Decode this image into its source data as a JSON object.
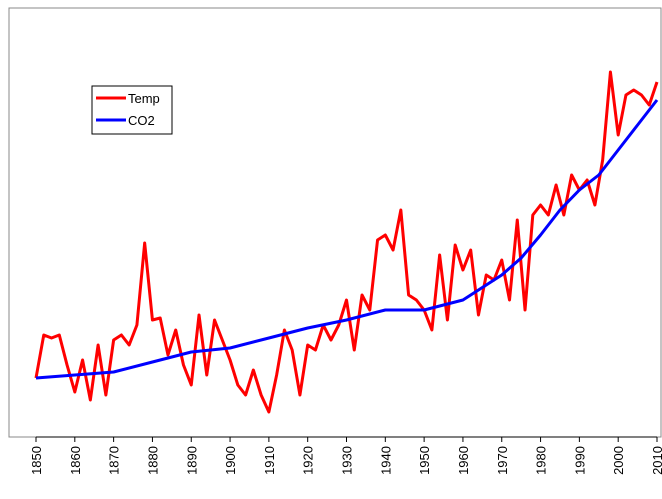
{
  "chart_data": {
    "type": "line",
    "xlim": [
      1850,
      2010
    ],
    "xticks": [
      1850,
      1860,
      1870,
      1880,
      1890,
      1900,
      1910,
      1920,
      1930,
      1940,
      1950,
      1960,
      1970,
      1980,
      1990,
      2000,
      2010
    ],
    "ylim": [
      0,
      429
    ],
    "legend": "upper left",
    "series": [
      {
        "name": "Temp",
        "color": "#ff0000",
        "x": [
          1850,
          1852,
          1854,
          1856,
          1858,
          1860,
          1862,
          1864,
          1866,
          1868,
          1870,
          1872,
          1874,
          1876,
          1878,
          1880,
          1882,
          1884,
          1886,
          1888,
          1890,
          1892,
          1894,
          1896,
          1898,
          1900,
          1902,
          1904,
          1906,
          1908,
          1910,
          1912,
          1914,
          1916,
          1918,
          1920,
          1922,
          1924,
          1926,
          1928,
          1930,
          1932,
          1934,
          1936,
          1938,
          1940,
          1942,
          1944,
          1946,
          1948,
          1950,
          1952,
          1954,
          1956,
          1958,
          1960,
          1962,
          1964,
          1966,
          1968,
          1970,
          1972,
          1974,
          1976,
          1978,
          1980,
          1982,
          1984,
          1986,
          1988,
          1990,
          1992,
          1994,
          1996,
          1998,
          2000,
          2002,
          2004,
          2006,
          2008,
          2010
        ],
        "values": [
          59,
          102,
          99,
          102,
          72,
          45,
          77,
          37,
          92,
          42,
          97,
          102,
          92,
          112,
          194,
          117,
          119,
          82,
          107,
          72,
          52,
          122,
          62,
          117,
          97,
          77,
          52,
          42,
          67,
          42,
          25,
          62,
          107,
          87,
          42,
          92,
          87,
          112,
          97,
          112,
          137,
          87,
          142,
          127,
          197,
          202,
          187,
          227,
          142,
          137,
          127,
          107,
          182,
          117,
          192,
          167,
          187,
          122,
          162,
          157,
          177,
          137,
          217,
          127,
          222,
          232,
          222,
          252,
          222,
          262,
          247,
          257,
          232,
          277,
          365,
          302,
          342,
          347,
          342,
          332,
          355
        ]
      },
      {
        "name": "CO2",
        "color": "#0000ff",
        "x": [
          1850,
          1860,
          1870,
          1880,
          1890,
          1900,
          1910,
          1920,
          1930,
          1940,
          1950,
          1960,
          1970,
          1975,
          1980,
          1985,
          1990,
          1995,
          2000,
          2005,
          2010
        ],
        "values": [
          59,
          62,
          65,
          75,
          85,
          89,
          99,
          109,
          117,
          127,
          127,
          137,
          162,
          179,
          202,
          227,
          247,
          262,
          287,
          312,
          337
        ]
      }
    ]
  }
}
